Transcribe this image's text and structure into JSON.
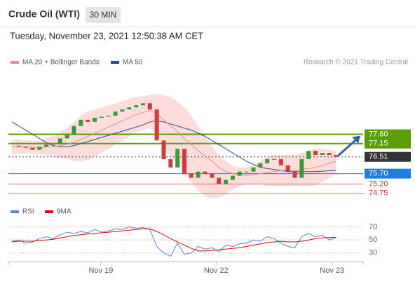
{
  "chart_data": {
    "type": "candlestick",
    "title": "Crude Oil (WTI)",
    "timeframe": "30 MIN",
    "subtitle": "Tuesday, November 23, 2021 12:50:38 AM CET",
    "credit": "Research © 2021 Trading Central",
    "xlim": [
      -0.5,
      50.9
    ],
    "xticks": [
      {
        "value": 12.9,
        "label": "Nov 19"
      },
      {
        "value": 29.6,
        "label": "Nov 22"
      },
      {
        "value": 46.4,
        "label": "Nov 23"
      }
    ],
    "ylim": [
      74.4,
      80.7
    ],
    "up_color": "#3a9a3a",
    "down_color": "#d23b3b",
    "series": [
      {
        "name": "Price",
        "color": "#555555",
        "values": [
          77.05,
          77.0,
          76.95,
          76.85,
          77.0,
          77.1,
          77.15,
          77.4,
          77.6,
          78.0,
          78.3,
          78.2,
          78.4,
          78.45,
          78.5,
          78.7,
          78.8,
          78.9,
          79.0,
          79.1,
          78.8,
          77.3,
          76.4,
          76.0,
          76.9,
          75.7,
          75.5,
          75.8,
          75.7,
          75.5,
          75.2,
          75.4,
          75.6,
          75.8,
          75.8,
          76.0,
          76.2,
          76.4,
          76.4,
          76.1,
          75.8,
          75.5,
          76.4,
          76.8,
          76.6,
          76.7,
          76.6,
          76.51
        ]
      },
      {
        "name": "MA 20 + Bollinger Bands",
        "color": "#f08a8a",
        "band_color": "#fdd3d3",
        "values": [
          77.0,
          77.0,
          77.0,
          76.98,
          76.97,
          76.98,
          77.0,
          77.05,
          77.12,
          77.22,
          77.35,
          77.5,
          77.65,
          77.8,
          77.95,
          78.1,
          78.25,
          78.4,
          78.55,
          78.65,
          78.75,
          78.6,
          78.3,
          78.0,
          77.75,
          77.4,
          77.1,
          76.8,
          76.55,
          76.3,
          76.0,
          75.8,
          75.7,
          75.65,
          75.62,
          75.65,
          75.7,
          75.75,
          75.8,
          75.85,
          75.85,
          75.85,
          75.9,
          75.95,
          76.0,
          76.1,
          76.2,
          76.3
        ],
        "upper": [
          77.35,
          77.35,
          77.3,
          77.3,
          77.3,
          77.4,
          77.5,
          77.7,
          77.9,
          78.2,
          78.5,
          78.7,
          78.8,
          78.9,
          79.0,
          79.1,
          79.2,
          79.3,
          79.4,
          79.45,
          79.5,
          79.55,
          79.5,
          79.4,
          79.2,
          78.9,
          78.5,
          78.0,
          77.5,
          77.0,
          76.6,
          76.3,
          76.1,
          76.0,
          76.0,
          76.1,
          76.3,
          76.5,
          76.6,
          76.6,
          76.6,
          76.6,
          76.7,
          76.8,
          76.9,
          76.9,
          76.85,
          76.8
        ],
        "lower": [
          76.65,
          76.65,
          76.7,
          76.65,
          76.65,
          76.6,
          76.5,
          76.45,
          76.4,
          76.3,
          76.3,
          76.35,
          76.5,
          76.7,
          76.9,
          77.1,
          77.3,
          77.5,
          77.7,
          77.8,
          77.9,
          77.6,
          77.0,
          76.5,
          76.2,
          75.8,
          75.3,
          74.9,
          74.6,
          74.5,
          74.55,
          74.7,
          74.9,
          75.1,
          75.2,
          75.2,
          75.2,
          75.1,
          75.1,
          75.1,
          75.1,
          75.1,
          75.1,
          75.1,
          75.15,
          75.3,
          75.5,
          75.7
        ]
      },
      {
        "name": "MA 50",
        "color": "#2b4a8b",
        "values": [
          78.2,
          78.0,
          77.8,
          77.6,
          77.4,
          77.2,
          77.05,
          77.0,
          77.0,
          77.05,
          77.15,
          77.25,
          77.35,
          77.45,
          77.55,
          77.65,
          77.75,
          77.85,
          77.95,
          78.05,
          78.2,
          78.25,
          78.2,
          78.1,
          78.0,
          77.9,
          77.8,
          77.65,
          77.5,
          77.3,
          77.1,
          76.9,
          76.7,
          76.5,
          76.3,
          76.15,
          76.0,
          75.95,
          75.9,
          75.85,
          75.8,
          75.8,
          75.8,
          75.8,
          75.8,
          75.82,
          75.84,
          75.86
        ]
      }
    ],
    "levels": [
      {
        "value": 77.6,
        "label": "77.60",
        "color": "#5aa000",
        "style": "box"
      },
      {
        "value": 77.15,
        "label": "77.15",
        "color": "#5aa000",
        "style": "box"
      },
      {
        "value": 76.51,
        "label": "76.51",
        "color": "#333333",
        "style": "current"
      },
      {
        "value": 75.7,
        "label": "75.70",
        "color": "#1e7ee6",
        "style": "box"
      },
      {
        "value": 75.2,
        "label": "75.20",
        "color": "#e03030",
        "style": "text"
      },
      {
        "value": 74.75,
        "label": "74.75",
        "color": "#e03030",
        "style": "text"
      }
    ],
    "indicator": {
      "ylim": [
        20,
        75
      ],
      "yticks": [
        30,
        50,
        70
      ],
      "series": [
        {
          "name": "RSI",
          "color": "#5a7ddc",
          "values": [
            48,
            50,
            45,
            47,
            52,
            55,
            52,
            58,
            62,
            60,
            63,
            61,
            66,
            62,
            64,
            67,
            66,
            70,
            68,
            69,
            66,
            40,
            30,
            25,
            45,
            28,
            30,
            40,
            36,
            38,
            32,
            42,
            40,
            44,
            45,
            50,
            48,
            55,
            52,
            45,
            40,
            38,
            55,
            60,
            55,
            57,
            50,
            54
          ]
        },
        {
          "name": "9MA",
          "color": "#e00000",
          "values": [
            47,
            48,
            48,
            48,
            49,
            50,
            51,
            53,
            55,
            57,
            58,
            59,
            60,
            61,
            62,
            63,
            64,
            65,
            66,
            67,
            67,
            63,
            58,
            52,
            47,
            42,
            37,
            33,
            33,
            34,
            35,
            36,
            37,
            38,
            40,
            42,
            44,
            46,
            47,
            48,
            47,
            47,
            48,
            50,
            52,
            53,
            54,
            54
          ]
        }
      ]
    }
  }
}
